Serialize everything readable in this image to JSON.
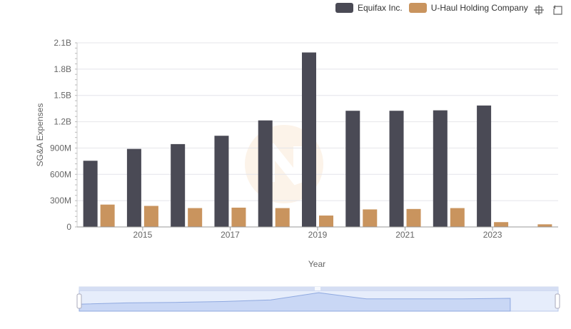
{
  "chart_data": {
    "type": "bar",
    "title": "",
    "xlabel": "Year",
    "ylabel": "SG&A Expenses",
    "ylim": [
      0,
      2100000000
    ],
    "yticks": [
      {
        "value": 0,
        "label": "0"
      },
      {
        "value": 300000000,
        "label": "300M"
      },
      {
        "value": 600000000,
        "label": "600M"
      },
      {
        "value": 900000000,
        "label": "900M"
      },
      {
        "value": 1200000000,
        "label": "1.2B"
      },
      {
        "value": 1500000000,
        "label": "1.5B"
      },
      {
        "value": 1800000000,
        "label": "1.8B"
      },
      {
        "value": 2100000000,
        "label": "2.1B"
      }
    ],
    "categories": [
      "2014",
      "2015",
      "2016",
      "2017",
      "2018",
      "2019",
      "2020",
      "2021",
      "2022",
      "2023",
      "2024"
    ],
    "xtick_labels": [
      "2015",
      "2017",
      "2019",
      "2021",
      "2023"
    ],
    "grid": true,
    "legend_position": "top-right",
    "series": [
      {
        "name": "Equifax Inc.",
        "color": "#4a4a55",
        "values": [
          755000000,
          890000000,
          945000000,
          1040000000,
          1215000000,
          1990000000,
          1325000000,
          1325000000,
          1330000000,
          1385000000,
          null
        ]
      },
      {
        "name": "U-Haul Holding Company",
        "color": "#c9945e",
        "values": [
          255000000,
          240000000,
          215000000,
          220000000,
          215000000,
          130000000,
          200000000,
          205000000,
          215000000,
          55000000,
          30000000
        ]
      }
    ]
  },
  "toolbar": {
    "zoom_icon": "zoom-icon",
    "reset_icon": "reset-icon"
  }
}
